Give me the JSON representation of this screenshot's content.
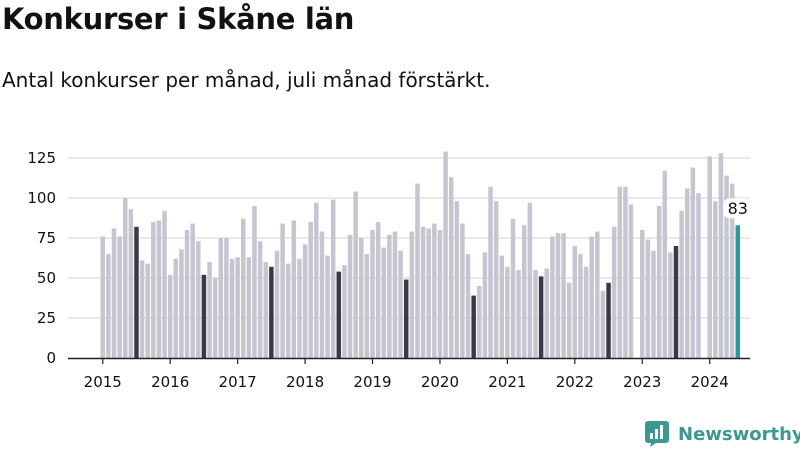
{
  "header": {
    "title": "Konkurser i Skåne län",
    "subtitle": "Antal konkurser per månad, juli månad förstärkt."
  },
  "brand": {
    "name": "Newsworthy",
    "icon": "newsworthy-logo-icon"
  },
  "colors": {
    "bar": "#c6c6d0",
    "july": "#3a3a46",
    "latest": "#2e9a93",
    "grid": "#dcdcdc",
    "axis": "#222222",
    "text": "#111111",
    "brand": "#3d9990"
  },
  "chart_data": {
    "type": "bar",
    "title": "Konkurser i Skåne län",
    "subtitle": "Antal konkurser per månad, juli månad förstärkt.",
    "xlabel": "",
    "ylabel": "",
    "ylim": [
      0,
      135
    ],
    "yticks": [
      0,
      25,
      50,
      75,
      100,
      125
    ],
    "grid": true,
    "year_labels": [
      "2015",
      "2016",
      "2017",
      "2018",
      "2019",
      "2020",
      "2021",
      "2022",
      "2023",
      "2024"
    ],
    "start_month": "2015-01",
    "highlight_month": 7,
    "series": [
      {
        "values": [
          76,
          65,
          81,
          76,
          100,
          93,
          82,
          61,
          59,
          85,
          86,
          92,
          52,
          62,
          68,
          80,
          84,
          73,
          52,
          60,
          50,
          75,
          75,
          62,
          63,
          87,
          63,
          95,
          73,
          60,
          57,
          67,
          84,
          59,
          86,
          62,
          71,
          85,
          97,
          79,
          64,
          99,
          54,
          58,
          77,
          104,
          75,
          65,
          80,
          85,
          69,
          77,
          79,
          67,
          49,
          79,
          109,
          82,
          81,
          84,
          80,
          129,
          113,
          98,
          84,
          65,
          39,
          45,
          66,
          107,
          98,
          64,
          57,
          87,
          55,
          83,
          97,
          55,
          51,
          56,
          76,
          78,
          78,
          47,
          70,
          65,
          57,
          76,
          79,
          42,
          47,
          82,
          107,
          107,
          96,
          0,
          80,
          74,
          67,
          95,
          117,
          66,
          70,
          92,
          106,
          119,
          103,
          0,
          126,
          98,
          128,
          114,
          109,
          83
        ]
      }
    ],
    "annotation": {
      "label": "83",
      "month": "2024-07"
    }
  }
}
